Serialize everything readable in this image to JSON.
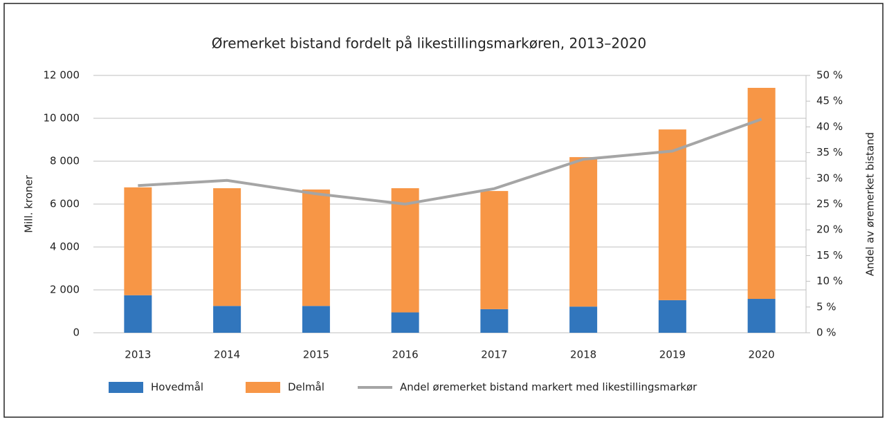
{
  "chart_data": {
    "type": "bar",
    "title": "Øremerket bistand fordelt på likestillingsmarkøren, 2013–2020",
    "ylabel": "Mill. kroner",
    "y2label": "Andel av øremerket bistand",
    "stacked": true,
    "categories": [
      "2013",
      "2014",
      "2015",
      "2016",
      "2017",
      "2018",
      "2019",
      "2020"
    ],
    "series": [
      {
        "name": "Hovedmål",
        "color": "#3176bd",
        "values": [
          1750,
          1250,
          1250,
          950,
          1100,
          1220,
          1520,
          1580
        ]
      },
      {
        "name": "Delmål",
        "color": "#f79646",
        "values": [
          5030,
          5490,
          5430,
          5790,
          5510,
          6970,
          7960,
          9840
        ]
      },
      {
        "name": "Andel øremerket bistand markert med likestillingsmarkør",
        "color": "#a5a5a5",
        "type": "line",
        "axis": "y2",
        "values": [
          28.6,
          29.6,
          27.0,
          25.0,
          28.0,
          33.7,
          35.3,
          41.5
        ]
      }
    ],
    "ylim": [
      0,
      12000
    ],
    "yticks": [
      0,
      {
        "value": 2000,
        "label": "2 000"
      },
      {
        "value": 4000,
        "label": "4 000"
      },
      {
        "value": 6000,
        "label": "6 000"
      },
      {
        "value": 8000,
        "label": "8 000"
      },
      {
        "value": 10000,
        "label": "10 000"
      },
      {
        "value": 12000,
        "label": "12 000"
      }
    ],
    "y2lim": [
      0,
      50
    ],
    "y2ticks": [
      {
        "value": 0,
        "label": "0 %"
      },
      {
        "value": 5,
        "label": "5 %"
      },
      {
        "value": 10,
        "label": "10 %"
      },
      {
        "value": 15,
        "label": "15 %"
      },
      {
        "value": 20,
        "label": "20 %"
      },
      {
        "value": 25,
        "label": "25 %"
      },
      {
        "value": 30,
        "label": "30 %"
      },
      {
        "value": 35,
        "label": "35 %"
      },
      {
        "value": 40,
        "label": "40 %"
      },
      {
        "value": 45,
        "label": "45 %"
      },
      {
        "value": 50,
        "label": "50 %"
      }
    ],
    "grid": true,
    "legend": "bottom"
  }
}
